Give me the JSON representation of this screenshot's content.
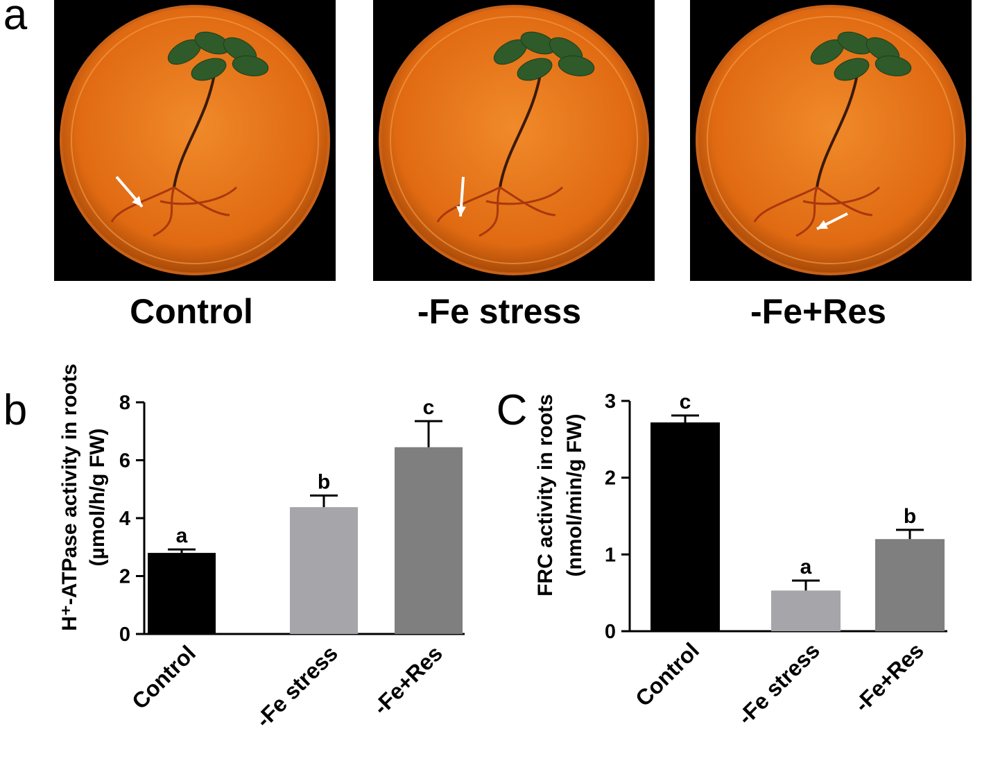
{
  "panel_labels": [
    "a",
    "b",
    "C"
  ],
  "photos": [
    {
      "caption": "Control"
    },
    {
      "caption": "-Fe stress"
    },
    {
      "caption": "-Fe+Res"
    }
  ],
  "chart_data": [
    {
      "type": "bar",
      "ylabel": [
        "H⁺-ATPase activity in roots",
        "(µmol/h/g FW)"
      ],
      "categories": [
        "Control",
        "-Fe stress",
        "-Fe+Res"
      ],
      "values": [
        2.8,
        4.38,
        6.45
      ],
      "errors": [
        0.12,
        0.4,
        0.9
      ],
      "significance": [
        "a",
        "b",
        "c"
      ],
      "colors": [
        "#000000",
        "#a5a5aa",
        "#7f7f7f"
      ],
      "ylim": [
        0,
        8
      ],
      "yticks": [
        0,
        2,
        4,
        6,
        8
      ]
    },
    {
      "type": "bar",
      "ylabel": [
        "FRC activity in roots",
        "(nmol/min/g FW)"
      ],
      "categories": [
        "Control",
        "-Fe stress",
        "-Fe+Res"
      ],
      "values": [
        2.72,
        0.53,
        1.2
      ],
      "errors": [
        0.09,
        0.13,
        0.12
      ],
      "significance": [
        "c",
        "a",
        "b"
      ],
      "colors": [
        "#000000",
        "#a5a5aa",
        "#7f7f7f"
      ],
      "ylim": [
        0,
        3
      ],
      "yticks": [
        0,
        1,
        2,
        3
      ]
    }
  ]
}
